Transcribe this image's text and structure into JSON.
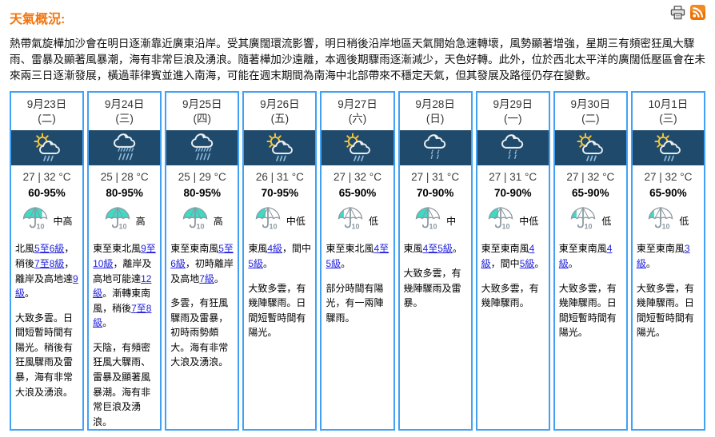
{
  "colors": {
    "accent": "#F2740D",
    "border": "#41A1F5",
    "band": "#1F4A6B",
    "link": "#2222DD",
    "psr_teal": "#3EDAC4",
    "sun_yellow": "#F2C33C",
    "rain_blue": "#8FB9D6",
    "rss_orange": "#EE7302"
  },
  "header": {
    "title": "天氣概況:",
    "icons": {
      "print": "printer-icon",
      "rss": "rss-icon"
    }
  },
  "intro": "熱帶氣旋樺加沙會在明日逐漸靠近廣東沿岸。受其廣闊環流影響，明日稍後沿岸地區天氣開始急速轉壞，風勢顯著增強，星期三有頻密狂風大驟雨、雷暴及顯著風暴潮，海有非常巨浪及湧浪。隨著樺加沙遠離，本週後期驟雨逐漸減少，天色好轉。此外，位於西北太平洋的廣闊低壓區會在未來兩三日逐漸發展，橫過菲律賓並進入南海，可能在週末期間為南海中北部帶來不穩定天氣，但其發展及路徑仍存在變數。",
  "days": [
    {
      "date": "9月23日",
      "weekday": "(二)",
      "icon": "sun-cloud-rain",
      "temp": "27 | 32 °C",
      "humidity": "60-95%",
      "psr": "中高",
      "psr_percent": 80,
      "wind": [
        {
          "text": "北風"
        },
        {
          "link": "5至6級"
        },
        {
          "text": "，稍後"
        },
        {
          "link": "7至8級"
        },
        {
          "text": "，離岸及高地達"
        },
        {
          "link": "9級"
        },
        {
          "text": "。"
        }
      ],
      "weather": "大致多雲。日間短暫時間有陽光。稍後有狂風驟雨及雷暴，海有非常大浪及湧浪。"
    },
    {
      "date": "9月24日",
      "weekday": "(三)",
      "icon": "cloud-heavy-rain",
      "temp": "25 | 28 °C",
      "humidity": "80-95%",
      "psr": "高",
      "psr_percent": 100,
      "wind": [
        {
          "text": "東至東北風"
        },
        {
          "link": "9至10級"
        },
        {
          "text": "，離岸及高地可能達"
        },
        {
          "link": "12級"
        },
        {
          "text": "。漸轉東南風，稍後"
        },
        {
          "link": "7至8級"
        },
        {
          "text": "。"
        }
      ],
      "weather": "天陰，有頻密狂風大驟雨、雷暴及顯著風暴潮。海有非常巨浪及湧浪。"
    },
    {
      "date": "9月25日",
      "weekday": "(四)",
      "icon": "cloud-heavy-rain",
      "temp": "25 | 29 °C",
      "humidity": "80-95%",
      "psr": "高",
      "psr_percent": 100,
      "wind": [
        {
          "text": "東至東南風"
        },
        {
          "link": "5至6級"
        },
        {
          "text": "，初時離岸及高地"
        },
        {
          "link": "7級"
        },
        {
          "text": "。"
        }
      ],
      "weather": "多雲，有狂風驟雨及雷暴，初時雨勢頗大。海有非常大浪及湧浪。"
    },
    {
      "date": "9月26日",
      "weekday": "(五)",
      "icon": "sun-cloud-rain",
      "temp": "26 | 31 °C",
      "humidity": "70-95%",
      "psr": "中低",
      "psr_percent": 40,
      "wind": [
        {
          "text": "東風"
        },
        {
          "link": "4級"
        },
        {
          "text": "，間中"
        },
        {
          "link": "5級"
        },
        {
          "text": "。"
        }
      ],
      "weather": "大致多雲，有幾陣驟雨。日間短暫時間有陽光。"
    },
    {
      "date": "9月27日",
      "weekday": "(六)",
      "icon": "sun-cloud-rain",
      "temp": "27 | 32 °C",
      "humidity": "65-90%",
      "psr": "低",
      "psr_percent": 22,
      "wind": [
        {
          "text": "東至東北風"
        },
        {
          "link": "4至5級"
        },
        {
          "text": "。"
        }
      ],
      "weather": "部分時間有陽光，有一兩陣驟雨。"
    },
    {
      "date": "9月28日",
      "weekday": "(日)",
      "icon": "cloud-light-rain",
      "temp": "27 | 31 °C",
      "humidity": "70-90%",
      "psr": "中",
      "psr_percent": 55,
      "wind": [
        {
          "text": "東風"
        },
        {
          "link": "4至5級"
        },
        {
          "text": "。"
        }
      ],
      "weather": "大致多雲，有幾陣驟雨及雷暴。"
    },
    {
      "date": "9月29日",
      "weekday": "(一)",
      "icon": "cloud-light-rain",
      "temp": "27 | 31 °C",
      "humidity": "70-90%",
      "psr": "中低",
      "psr_percent": 40,
      "wind": [
        {
          "text": "東至東南風"
        },
        {
          "link": "4級"
        },
        {
          "text": "，間中"
        },
        {
          "link": "5級"
        },
        {
          "text": "。"
        }
      ],
      "weather": "大致多雲，有幾陣驟雨。"
    },
    {
      "date": "9月30日",
      "weekday": "(二)",
      "icon": "sun-cloud-rain",
      "temp": "27 | 32 °C",
      "humidity": "65-90%",
      "psr": "低",
      "psr_percent": 22,
      "wind": [
        {
          "text": "東至東南風"
        },
        {
          "link": "4級"
        },
        {
          "text": "。"
        }
      ],
      "weather": "大致多雲，有幾陣驟雨。日間短暫時間有陽光。"
    },
    {
      "date": "10月1日",
      "weekday": "(三)",
      "icon": "sun-cloud-rain",
      "temp": "27 | 32 °C",
      "humidity": "65-90%",
      "psr": "低",
      "psr_percent": 22,
      "wind": [
        {
          "text": "東至東南風"
        },
        {
          "link": "3級"
        },
        {
          "text": "。"
        }
      ],
      "weather": "大致多雲，有幾陣驟雨。日間短暫時間有陽光。"
    }
  ]
}
